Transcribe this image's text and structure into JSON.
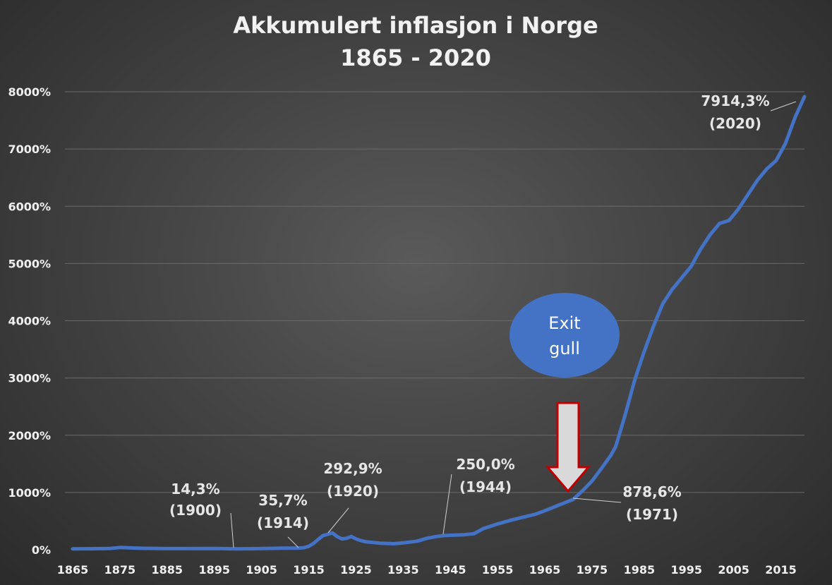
{
  "chart_data": {
    "type": "line",
    "title": [
      "Akkumulert inflasjon i Norge",
      "1865 - 2020"
    ],
    "xlabel": "",
    "ylabel": "",
    "xlim": [
      1865,
      2020
    ],
    "ylim": [
      0,
      8000
    ],
    "grid": true,
    "legend": "none",
    "x_ticks": [
      "1865",
      "1875",
      "1885",
      "1895",
      "1905",
      "1915",
      "1925",
      "1935",
      "1945",
      "1955",
      "1965",
      "1975",
      "1985",
      "1995",
      "2005",
      "2015"
    ],
    "y_ticks": [
      "0%",
      "1000%",
      "2000%",
      "3000%",
      "4000%",
      "5000%",
      "6000%",
      "7000%",
      "8000%"
    ],
    "series": [
      {
        "color": "#4472c4",
        "x": [
          1865,
          1870,
          1873,
          1875,
          1878,
          1880,
          1885,
          1890,
          1895,
          1900,
          1905,
          1910,
          1913,
          1914,
          1915,
          1916,
          1917,
          1918,
          1919,
          1920,
          1921,
          1922,
          1923,
          1924,
          1925,
          1926,
          1927,
          1930,
          1933,
          1935,
          1938,
          1940,
          1942,
          1944,
          1946,
          1948,
          1950,
          1952,
          1955,
          1958,
          1960,
          1963,
          1965,
          1968,
          1971,
          1973,
          1975,
          1977,
          1979,
          1980,
          1982,
          1984,
          1986,
          1988,
          1990,
          1992,
          1994,
          1996,
          1998,
          2000,
          2002,
          2004,
          2006,
          2008,
          2010,
          2012,
          2014,
          2016,
          2018,
          2020
        ],
        "values": [
          15,
          18,
          22,
          40,
          30,
          25,
          20,
          20,
          22,
          14.3,
          20,
          28,
          30,
          35.7,
          60,
          110,
          180,
          245,
          270,
          292.9,
          230,
          190,
          200,
          230,
          190,
          160,
          140,
          115,
          105,
          120,
          150,
          200,
          230,
          250,
          255,
          262,
          280,
          370,
          450,
          520,
          560,
          620,
          680,
          780,
          878.6,
          1030,
          1200,
          1420,
          1650,
          1800,
          2350,
          2950,
          3450,
          3900,
          4300,
          4550,
          4750,
          4950,
          5250,
          5500,
          5700,
          5750,
          5950,
          6200,
          6450,
          6650,
          6800,
          7100,
          7550,
          7914.3
        ]
      }
    ],
    "annotations": [
      {
        "value": "14,3%",
        "year": "(1900)"
      },
      {
        "value": "35,7%",
        "year": "(1914)"
      },
      {
        "value": "292,9%",
        "year": "(1920)"
      },
      {
        "value": "250,0%",
        "year": "(1944)"
      },
      {
        "value": "878,6%",
        "year": "(1971)"
      },
      {
        "value": "7914,3%",
        "year": "(2020)"
      }
    ],
    "callout": {
      "line1": "Exit",
      "line2": "gull",
      "color": "#4472c4"
    }
  }
}
